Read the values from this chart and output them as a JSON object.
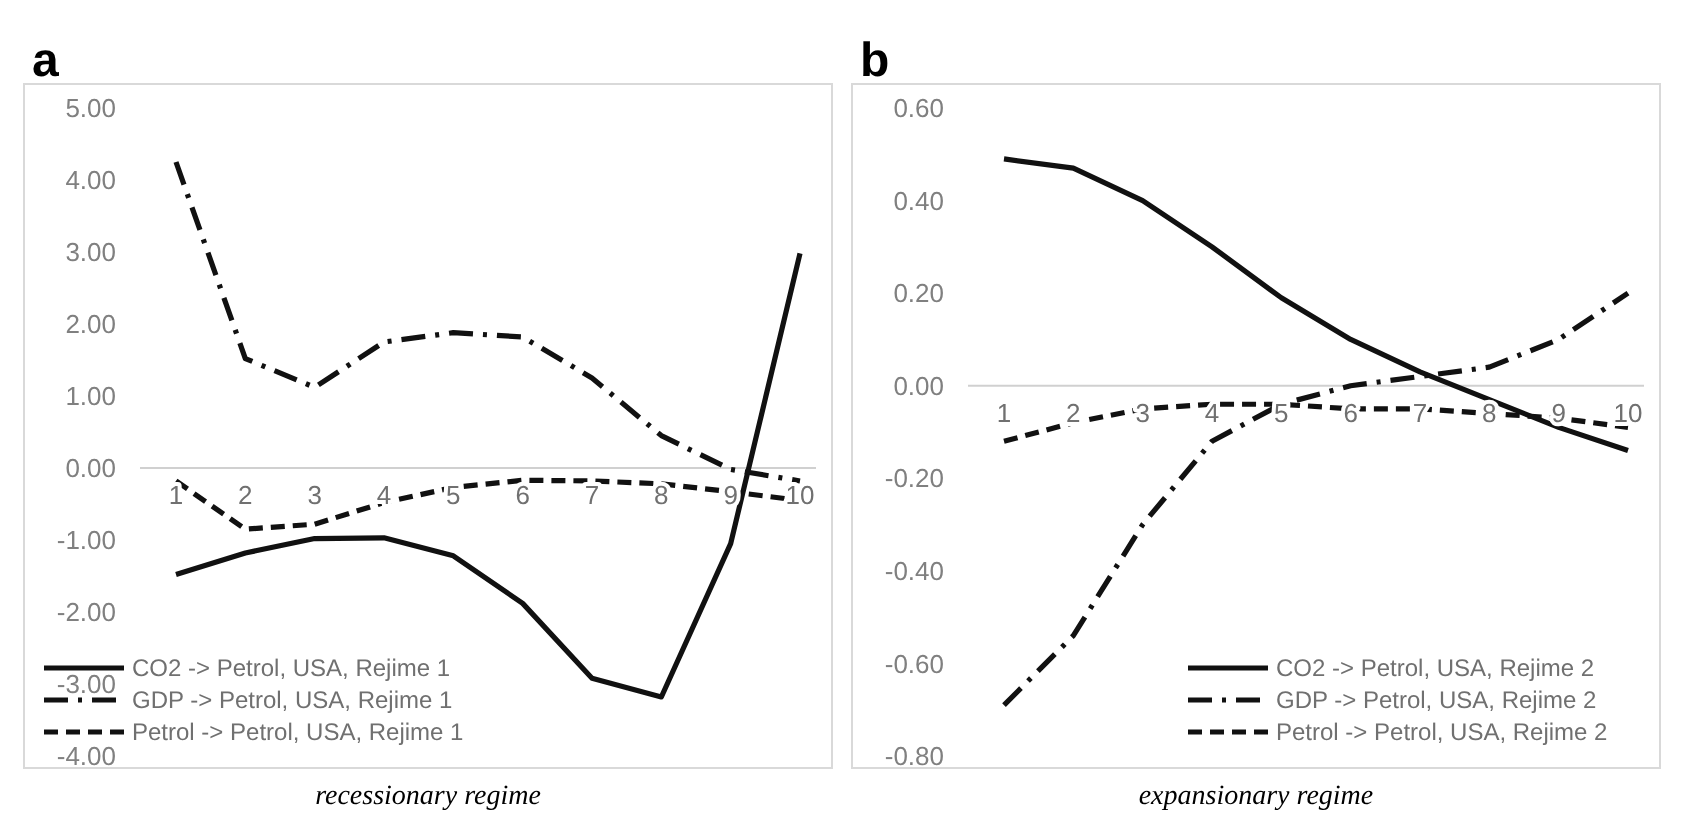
{
  "chart_data": [
    {
      "type": "line",
      "title": "a",
      "xlabel": "recessionary regime",
      "categories": [
        "1",
        "2",
        "3",
        "4",
        "5",
        "6",
        "7",
        "8",
        "9",
        "10"
      ],
      "ylim": [
        -4,
        5
      ],
      "yticks": [
        {
          "value": -4,
          "label": "-4.00"
        },
        {
          "value": -3,
          "label": "-3.00"
        },
        {
          "value": -2,
          "label": "-2.00"
        },
        {
          "value": -1,
          "label": "-1.00"
        },
        {
          "value": 0,
          "label": "0.00"
        },
        {
          "value": 1,
          "label": "1.00"
        },
        {
          "value": 2,
          "label": "2.00"
        },
        {
          "value": 3,
          "label": "3.00"
        },
        {
          "value": 4,
          "label": "4.00"
        },
        {
          "value": 5,
          "label": "5.00"
        }
      ],
      "legend": "bottom left",
      "grid": false,
      "marker": "none",
      "series": [
        {
          "name": "CO2 -> Petrol, USA, Rejime 1",
          "color": "#111111",
          "line_style": "solid",
          "values": [
            -1.48,
            -1.18,
            -0.98,
            -0.97,
            -1.22,
            -1.88,
            -2.92,
            -3.18,
            -1.05,
            2.98
          ]
        },
        {
          "name": "GDP -> Petrol, USA, Rejime 1",
          "color": "#111111",
          "line_style": "dashdot",
          "values": [
            4.25,
            1.52,
            1.12,
            1.75,
            1.88,
            1.82,
            1.25,
            0.45,
            -0.02,
            -0.18
          ]
        },
        {
          "name": "Petrol -> Petrol, USA, Rejime 1",
          "color": "#111111",
          "line_style": "dashed",
          "values": [
            -0.18,
            -0.85,
            -0.78,
            -0.48,
            -0.27,
            -0.17,
            -0.18,
            -0.22,
            -0.33,
            -0.45
          ]
        }
      ]
    },
    {
      "type": "line",
      "title": "b",
      "xlabel": "expansionary regime",
      "categories": [
        "1",
        "2",
        "3",
        "4",
        "5",
        "6",
        "7",
        "8",
        "9",
        "10"
      ],
      "ylim": [
        -0.8,
        0.6
      ],
      "yticks": [
        {
          "value": -0.8,
          "label": "-0.80"
        },
        {
          "value": -0.6,
          "label": "-0.60"
        },
        {
          "value": -0.4,
          "label": "-0.40"
        },
        {
          "value": -0.2,
          "label": "-0.20"
        },
        {
          "value": 0,
          "label": "0.00"
        },
        {
          "value": 0.2,
          "label": "0.20"
        },
        {
          "value": 0.4,
          "label": "0.40"
        },
        {
          "value": 0.6,
          "label": "0.60"
        }
      ],
      "legend": "bottom right",
      "grid": false,
      "marker": "none",
      "series": [
        {
          "name": "CO2 -> Petrol, USA, Rejime 2",
          "color": "#111111",
          "line_style": "solid",
          "values": [
            0.49,
            0.47,
            0.4,
            0.3,
            0.19,
            0.1,
            0.03,
            -0.03,
            -0.09,
            -0.14
          ]
        },
        {
          "name": "GDP -> Petrol, USA, Rejime 2",
          "color": "#111111",
          "line_style": "dashdot",
          "values": [
            -0.69,
            -0.54,
            -0.3,
            -0.12,
            -0.04,
            0.0,
            0.02,
            0.04,
            0.1,
            0.2
          ]
        },
        {
          "name": "Petrol -> Petrol, USA, Rejime 2",
          "color": "#111111",
          "line_style": "dashed",
          "values": [
            -0.12,
            -0.08,
            -0.05,
            -0.04,
            -0.04,
            -0.05,
            -0.05,
            -0.06,
            -0.07,
            -0.09
          ]
        }
      ]
    }
  ]
}
